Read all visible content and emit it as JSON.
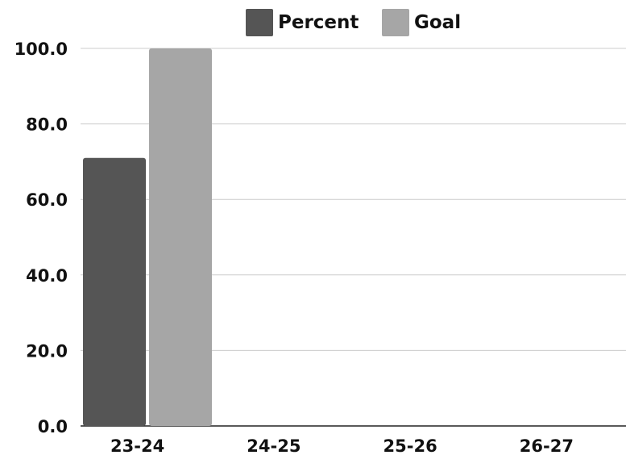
{
  "chart_data": {
    "type": "bar",
    "categories": [
      "23-24",
      "24-25",
      "25-26",
      "26-27"
    ],
    "series": [
      {
        "name": "Percent",
        "values": [
          71,
          null,
          null,
          null
        ],
        "color": "#555555"
      },
      {
        "name": "Goal",
        "values": [
          100,
          null,
          null,
          null
        ],
        "color": "#a6a6a6"
      }
    ],
    "y_ticks": [
      "0.0",
      "20.0",
      "40.0",
      "60.0",
      "80.0",
      "100.0"
    ],
    "ylim": [
      0,
      100
    ],
    "grid": true,
    "legend_position": "top-center",
    "title": "",
    "xlabel": "",
    "ylabel": ""
  }
}
